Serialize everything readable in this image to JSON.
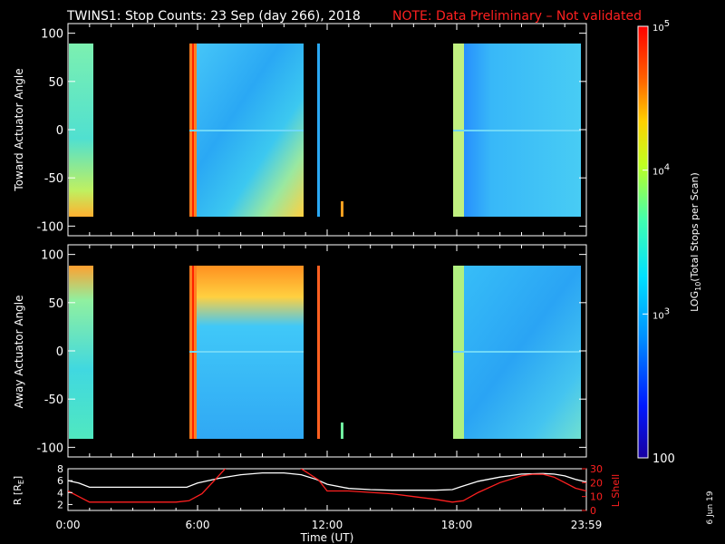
{
  "header": {
    "title": "TWINS1: Stop Counts: 23 Sep (day 266), 2018",
    "note": "NOTE: Data Preliminary – Not validated"
  },
  "colors": {
    "background": "#000000",
    "text": "#ffffff",
    "note": "#ff2020",
    "lshell": "#ff2020",
    "radius": "#ffffff"
  },
  "stamp": "6 Jun 19",
  "chart_data": [
    {
      "type": "heatmap",
      "panel": "top",
      "ylabel": "Toward Actuator Angle",
      "ylim": [
        -110,
        110
      ],
      "yticks": [
        100,
        50,
        0,
        -50,
        -100
      ],
      "xlim": [
        0,
        24
      ],
      "angle_range": [
        -90,
        90
      ],
      "data_intervals_hours": [
        [
          0,
          0.9
        ],
        [
          5.45,
          10.7
        ],
        [
          11.4,
          11.48
        ],
        [
          12.55,
          12.62
        ],
        [
          17.9,
          24
        ]
      ],
      "log_scale": true
    },
    {
      "type": "heatmap",
      "panel": "bottom",
      "ylabel": "Away Actuator Angle",
      "ylim": [
        -110,
        110
      ],
      "yticks": [
        100,
        50,
        0,
        -50,
        -100
      ],
      "xlim": [
        0,
        24
      ],
      "angle_range": [
        -90,
        90
      ],
      "data_intervals_hours": [
        [
          0,
          0.9
        ],
        [
          5.45,
          10.7
        ],
        [
          11.4,
          11.48
        ],
        [
          12.55,
          12.62
        ],
        [
          17.9,
          24
        ]
      ],
      "log_scale": true
    },
    {
      "type": "colorbar",
      "label_prefix": "LOG",
      "label_sub": "10",
      "label_suffix": "(Total Stops per Scan)",
      "ticks": [
        {
          "base": "10",
          "exp": "5"
        },
        {
          "base": "10",
          "exp": "4"
        },
        {
          "base": "10",
          "exp": "3"
        },
        {
          "base": "100",
          "exp": ""
        }
      ],
      "range": [
        100,
        100000
      ]
    },
    {
      "type": "line",
      "panel": "orbit",
      "xlabel": "Time (UT)",
      "ylabel_left_prefix": "R [R",
      "ylabel_left_sub": "E",
      "ylabel_left_suffix": "]",
      "ylabel_right": "L Shell",
      "yticks_left": [
        "8",
        "6",
        "4",
        "2"
      ],
      "yticks_right": [
        "30",
        "20",
        "10",
        "0"
      ],
      "ylim_left": [
        1,
        8
      ],
      "ylim_right": [
        0,
        30
      ],
      "xticks": [
        "0:00",
        "6:00",
        "12:00",
        "18:00",
        "23:59"
      ],
      "xtick_hours": [
        0,
        6,
        12,
        18,
        24
      ],
      "series": [
        {
          "color": "#ffffff",
          "axis": "left",
          "x": [
            0,
            0.5,
            1.0,
            2,
            3,
            4,
            5,
            5.5,
            6,
            7,
            8,
            9,
            10,
            10.8,
            11.5,
            12,
            13,
            14,
            15,
            16,
            17,
            17.8,
            18.2,
            19,
            20,
            21,
            22,
            22.5,
            23,
            23.5,
            24
          ],
          "y": [
            6.0,
            5.6,
            4.9,
            4.9,
            4.9,
            4.9,
            4.9,
            4.9,
            5.6,
            6.4,
            7.0,
            7.3,
            7.3,
            7.0,
            6.2,
            5.4,
            4.7,
            4.5,
            4.4,
            4.4,
            4.4,
            4.5,
            5.0,
            5.9,
            6.6,
            7.1,
            7.2,
            7.1,
            6.8,
            6.2,
            5.8
          ]
        },
        {
          "color": "#ff2020",
          "axis": "right",
          "x": [
            0,
            0.5,
            1.0,
            2,
            3,
            4,
            5,
            5.6,
            6.2,
            6.8,
            7.4,
            10.6,
            11.6,
            12,
            13,
            14,
            15,
            16,
            17,
            17.8,
            18.3,
            19,
            20,
            21,
            21.5,
            22,
            22.5,
            23,
            23.5,
            24
          ],
          "y": [
            14,
            10,
            6,
            6,
            6,
            6,
            6,
            7,
            12,
            22,
            32,
            32,
            22,
            14,
            14,
            13,
            12,
            10,
            8,
            6,
            7,
            13,
            20,
            25,
            26,
            26,
            24,
            20,
            16,
            14
          ]
        }
      ]
    }
  ]
}
